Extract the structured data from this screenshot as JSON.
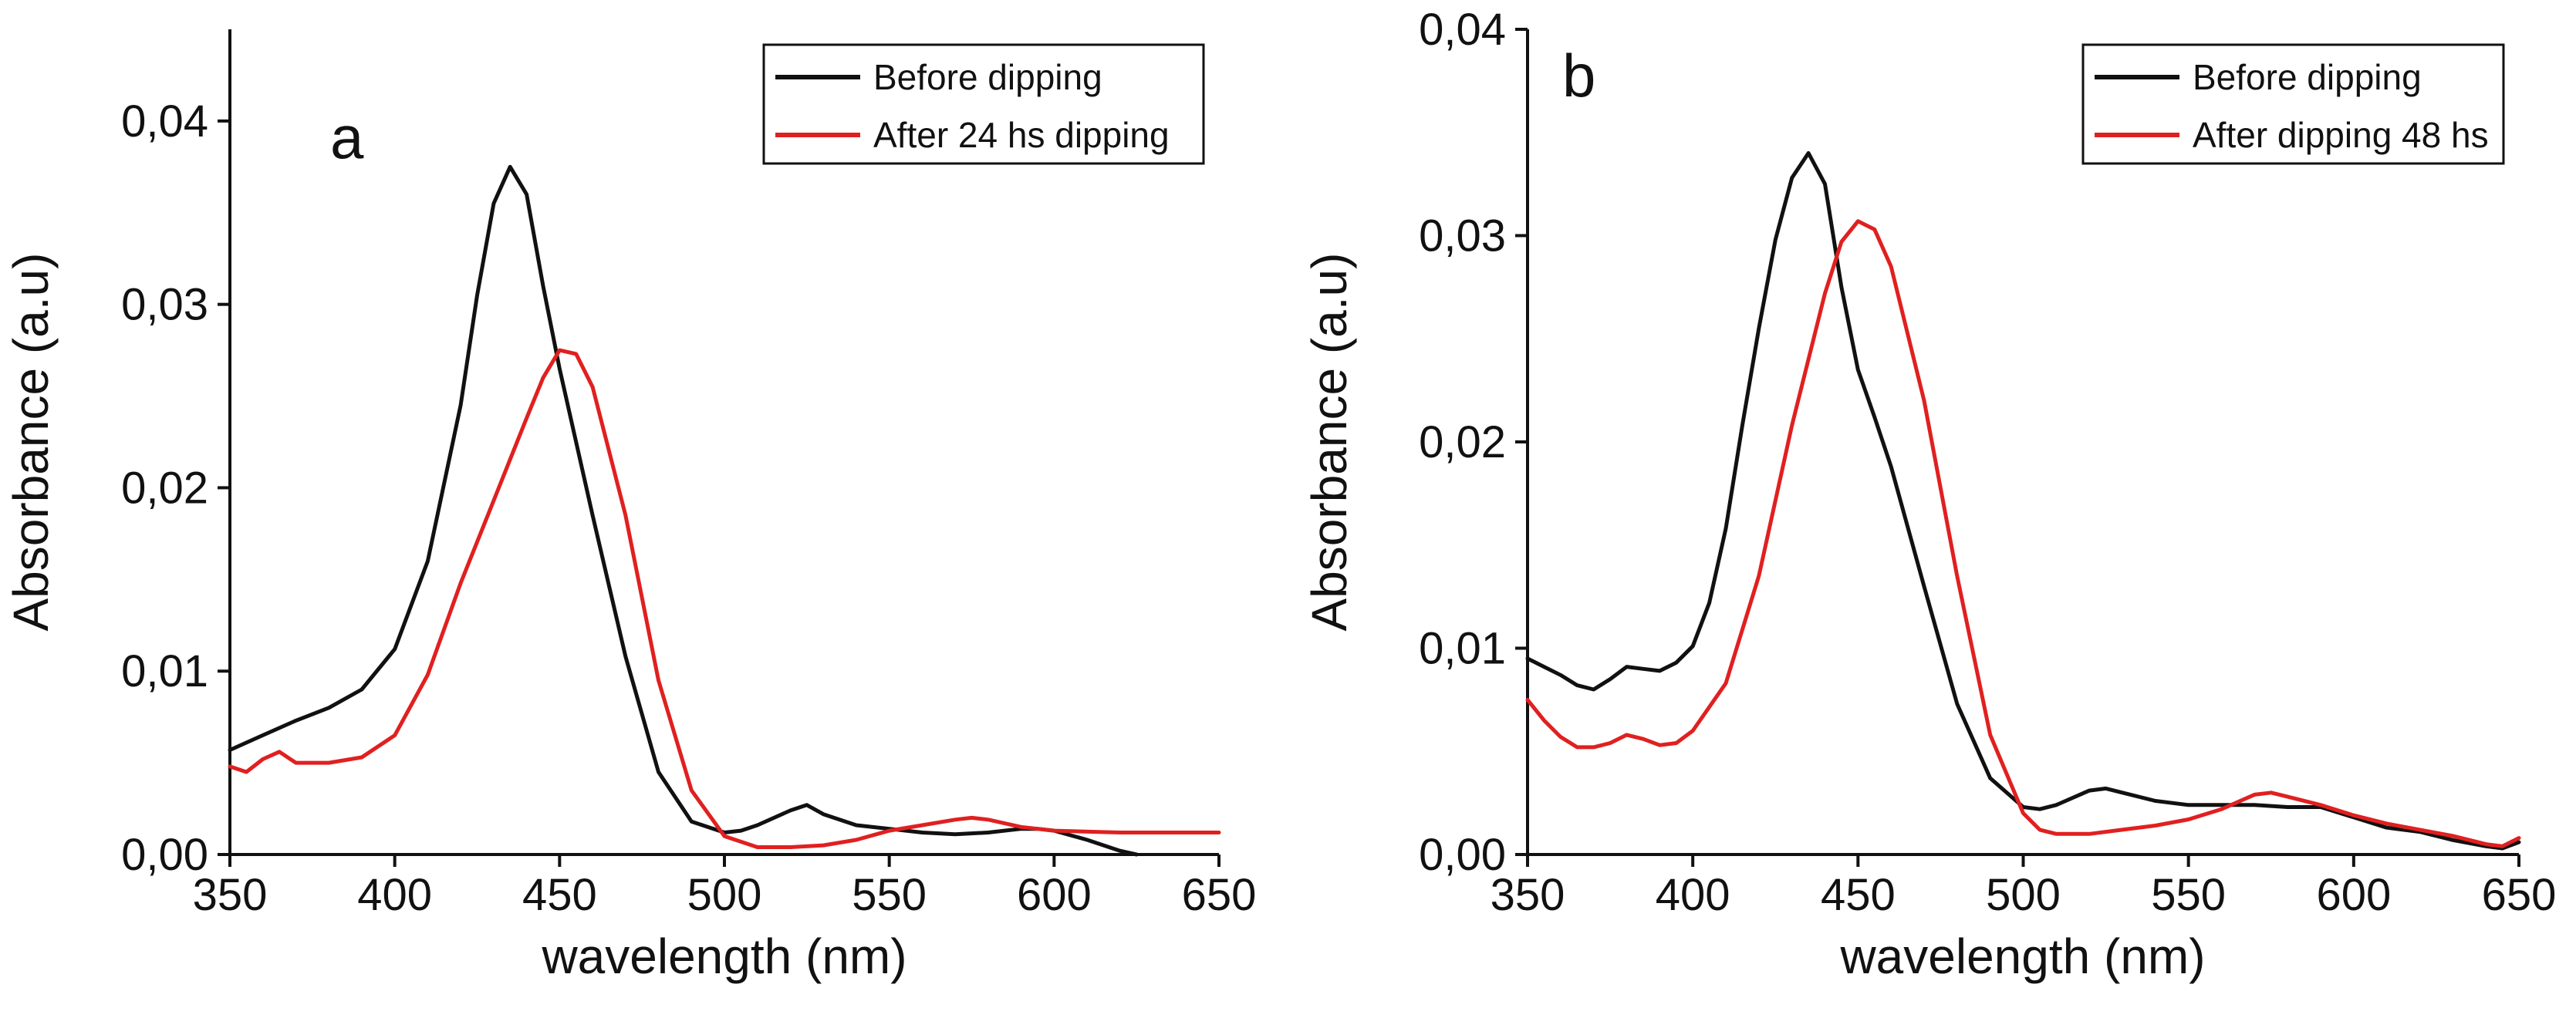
{
  "chart_data": [
    {
      "type": "line",
      "panel_label": "a",
      "xlabel": "wavelength (nm)",
      "ylabel": "Absorbance (a.u)",
      "xlim": [
        350,
        650
      ],
      "ylim": [
        0,
        0.045
      ],
      "xticks": [
        350,
        400,
        450,
        500,
        550,
        600,
        650
      ],
      "xtick_labels": [
        "350",
        "400",
        "450",
        "500",
        "550",
        "600",
        "650"
      ],
      "yticks": [
        0,
        0.01,
        0.02,
        0.03,
        0.04
      ],
      "ytick_labels": [
        "0,00",
        "0,01",
        "0,02",
        "0,03",
        "0,04"
      ],
      "legend_position": "top-right",
      "series": [
        {
          "name": "Before dipping",
          "color": "#111111",
          "x": [
            350,
            360,
            370,
            380,
            390,
            400,
            410,
            420,
            425,
            430,
            435,
            440,
            445,
            450,
            455,
            460,
            470,
            480,
            490,
            500,
            505,
            510,
            520,
            525,
            530,
            540,
            550,
            560,
            570,
            580,
            590,
            595,
            600,
            610,
            620,
            625
          ],
          "y": [
            0.0057,
            0.0065,
            0.0073,
            0.008,
            0.009,
            0.0112,
            0.016,
            0.0245,
            0.0305,
            0.0355,
            0.0375,
            0.036,
            0.031,
            0.0265,
            0.0225,
            0.0185,
            0.0108,
            0.0045,
            0.0018,
            0.0012,
            0.0013,
            0.0016,
            0.0024,
            0.0027,
            0.0022,
            0.0016,
            0.0014,
            0.0012,
            0.0011,
            0.0012,
            0.0014,
            0.0014,
            0.0013,
            0.0008,
            0.0002,
            0
          ]
        },
        {
          "name": "After 24 hs dipping",
          "color": "#e02020",
          "x": [
            350,
            355,
            360,
            365,
            370,
            380,
            390,
            400,
            410,
            420,
            430,
            440,
            445,
            450,
            455,
            460,
            470,
            480,
            490,
            500,
            510,
            520,
            530,
            540,
            550,
            560,
            570,
            575,
            580,
            590,
            600,
            620,
            650
          ],
          "y": [
            0.0048,
            0.0045,
            0.0052,
            0.0056,
            0.005,
            0.005,
            0.0053,
            0.0065,
            0.0098,
            0.0148,
            0.0193,
            0.0238,
            0.026,
            0.0275,
            0.0273,
            0.0255,
            0.0185,
            0.0095,
            0.0035,
            0.001,
            0.0004,
            0.0004,
            0.0005,
            0.0008,
            0.0013,
            0.0016,
            0.0019,
            0.002,
            0.0019,
            0.0015,
            0.0013,
            0.0012,
            0.0012
          ]
        }
      ]
    },
    {
      "type": "line",
      "panel_label": "b",
      "xlabel": "wavelength (nm)",
      "ylabel": "Absorbance (a.u)",
      "xlim": [
        350,
        650
      ],
      "ylim": [
        0,
        0.04
      ],
      "xticks": [
        350,
        400,
        450,
        500,
        550,
        600,
        650
      ],
      "xtick_labels": [
        "350",
        "400",
        "450",
        "500",
        "550",
        "600",
        "650"
      ],
      "yticks": [
        0,
        0.01,
        0.02,
        0.03,
        0.04
      ],
      "ytick_labels": [
        "0,00",
        "0,01",
        "0,02",
        "0,03",
        "0,04"
      ],
      "legend_position": "top-right",
      "series": [
        {
          "name": "Before dipping",
          "color": "#111111",
          "x": [
            350,
            355,
            360,
            365,
            370,
            375,
            380,
            385,
            390,
            395,
            400,
            405,
            410,
            415,
            420,
            425,
            430,
            435,
            440,
            445,
            450,
            455,
            460,
            470,
            480,
            490,
            500,
            505,
            510,
            520,
            525,
            530,
            540,
            550,
            560,
            570,
            580,
            590,
            600,
            610,
            620,
            630,
            640,
            645,
            650
          ],
          "y": [
            0.0095,
            0.0091,
            0.0087,
            0.0082,
            0.008,
            0.0085,
            0.0091,
            0.009,
            0.0089,
            0.0093,
            0.0101,
            0.0122,
            0.0158,
            0.0208,
            0.0255,
            0.0298,
            0.0328,
            0.034,
            0.0325,
            0.0275,
            0.0235,
            0.0212,
            0.0188,
            0.013,
            0.0073,
            0.0037,
            0.0023,
            0.0022,
            0.0024,
            0.0031,
            0.0032,
            0.003,
            0.0026,
            0.0024,
            0.0024,
            0.0024,
            0.0023,
            0.0023,
            0.0018,
            0.0013,
            0.0011,
            0.0007,
            0.0004,
            0.0003,
            0.0006
          ]
        },
        {
          "name": "After dipping 48 hs",
          "color": "#e02020",
          "x": [
            350,
            355,
            360,
            365,
            370,
            375,
            380,
            385,
            390,
            395,
            400,
            410,
            420,
            430,
            440,
            445,
            450,
            455,
            460,
            470,
            480,
            490,
            500,
            505,
            510,
            520,
            530,
            540,
            550,
            560,
            570,
            575,
            580,
            590,
            600,
            610,
            620,
            630,
            640,
            645,
            650
          ],
          "y": [
            0.0075,
            0.0065,
            0.0057,
            0.0052,
            0.0052,
            0.0054,
            0.0058,
            0.0056,
            0.0053,
            0.0054,
            0.006,
            0.0083,
            0.0135,
            0.0208,
            0.0272,
            0.0297,
            0.0307,
            0.0303,
            0.0285,
            0.022,
            0.0135,
            0.0058,
            0.002,
            0.0012,
            0.001,
            0.001,
            0.0012,
            0.0014,
            0.0017,
            0.0022,
            0.0029,
            0.003,
            0.0028,
            0.0024,
            0.0019,
            0.0015,
            0.0012,
            0.0009,
            0.0005,
            0.0004,
            0.0008
          ]
        }
      ]
    }
  ]
}
